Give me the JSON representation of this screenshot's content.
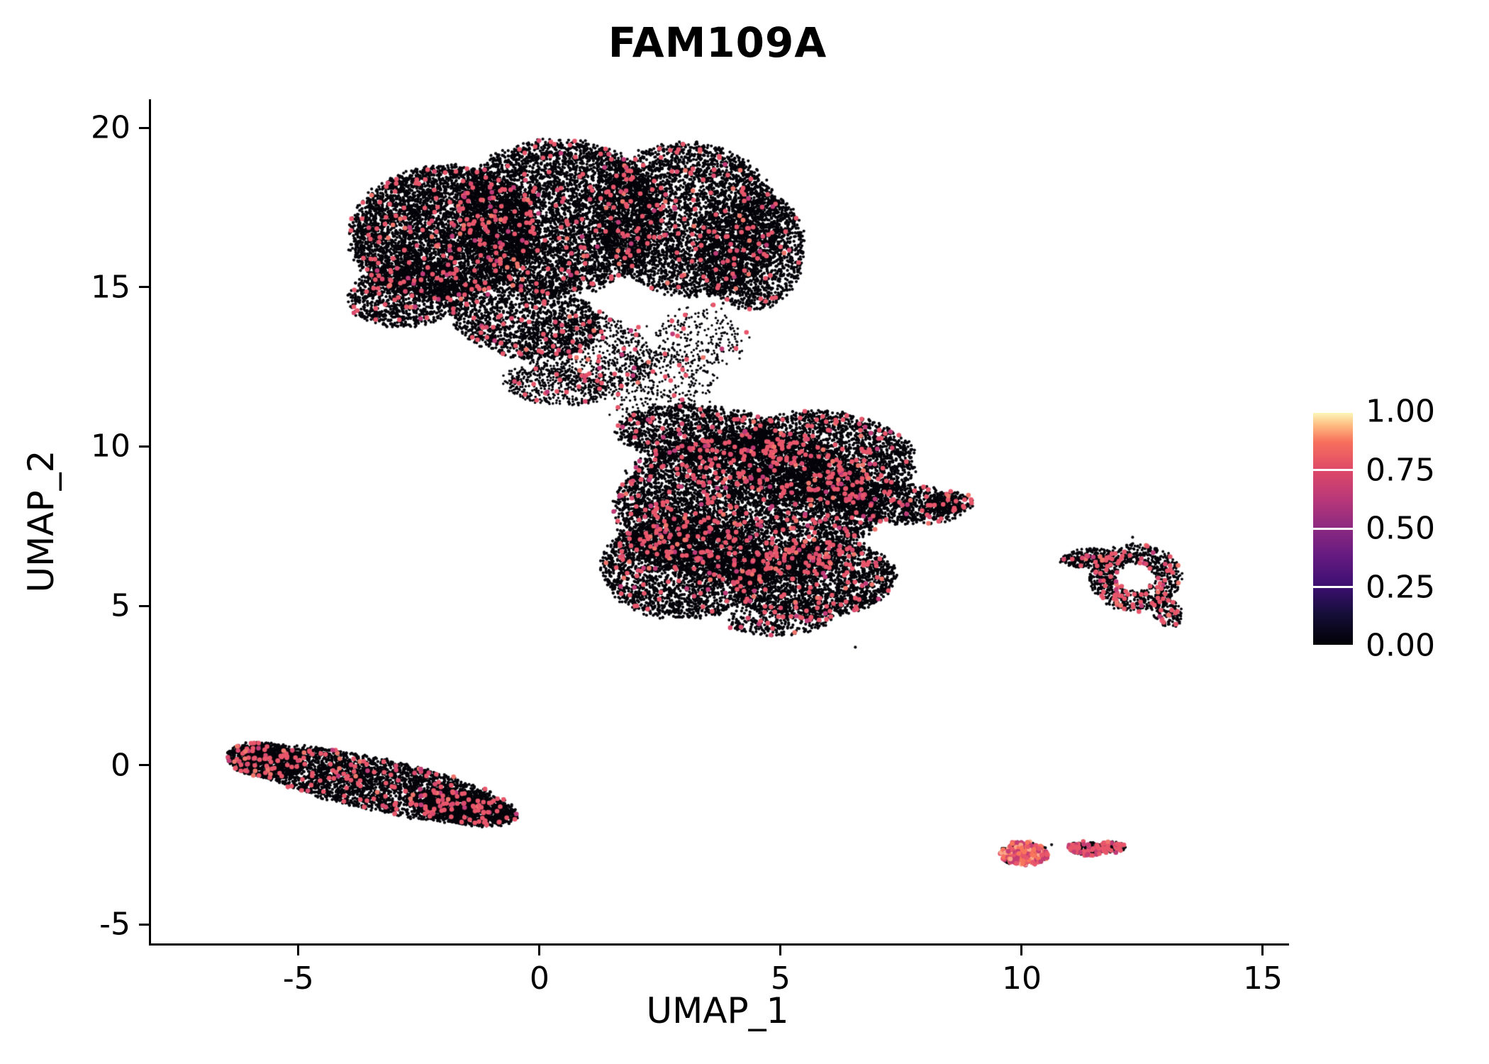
{
  "chart_data": {
    "type": "scatter",
    "title": "FAM109A",
    "xlabel": "UMAP_1",
    "ylabel": "UMAP_2",
    "xlim": [
      -8.1,
      15.5
    ],
    "ylim": [
      -5.6,
      20.9
    ],
    "grid": false,
    "seed": 42,
    "x_ticks": [
      {
        "value": -5,
        "label": "-5"
      },
      {
        "value": 0,
        "label": "0"
      },
      {
        "value": 5,
        "label": "5"
      },
      {
        "value": 10,
        "label": "10"
      },
      {
        "value": 15,
        "label": "15"
      }
    ],
    "y_ticks": [
      {
        "value": 20,
        "label": "20"
      },
      {
        "value": 15,
        "label": "15"
      },
      {
        "value": 10,
        "label": "10"
      },
      {
        "value": 5,
        "label": "5"
      },
      {
        "value": 0,
        "label": "0"
      },
      {
        "value": -5,
        "label": "-5"
      }
    ],
    "colorbar": {
      "colormap": "magma",
      "position": "right",
      "ticks": [
        {
          "value": 1.0,
          "label": "1.00"
        },
        {
          "value": 0.75,
          "label": "0.75"
        },
        {
          "value": 0.5,
          "label": "0.50"
        },
        {
          "value": 0.25,
          "label": "0.25"
        },
        {
          "value": 0.0,
          "label": "0.00"
        }
      ],
      "stops": [
        {
          "t": 0.0,
          "c": "#000004"
        },
        {
          "t": 0.13,
          "c": "#140e36"
        },
        {
          "t": 0.25,
          "c": "#3b0f70"
        },
        {
          "t": 0.38,
          "c": "#641a80"
        },
        {
          "t": 0.5,
          "c": "#8c2981"
        },
        {
          "t": 0.62,
          "c": "#b73779"
        },
        {
          "t": 0.75,
          "c": "#de4968"
        },
        {
          "t": 0.87,
          "c": "#f7705c"
        },
        {
          "t": 0.94,
          "c": "#feba80"
        },
        {
          "t": 1.0,
          "c": "#fcfdbf"
        }
      ]
    },
    "point_style": {
      "base_color": "#05040a",
      "base_radius": 2.1,
      "expr_radius": 3.3,
      "expressing_palette": [
        {
          "c": "#e8566b",
          "w": 0.7
        },
        {
          "c": "#d94a6e",
          "w": 0.12
        },
        {
          "c": "#c13a78",
          "w": 0.08
        },
        {
          "c": "#f0766c",
          "w": 0.1
        }
      ]
    },
    "clusters": [
      {
        "cx": -2.0,
        "cy": 16.7,
        "rx": 1.9,
        "ry": 2.1,
        "rot": -15,
        "n": 5200,
        "expr_frac": 0.03
      },
      {
        "cx": 0.4,
        "cy": 17.2,
        "rx": 2.1,
        "ry": 2.4,
        "rot": 0,
        "n": 5200,
        "expr_frac": 0.03
      },
      {
        "cx": 3.1,
        "cy": 17.1,
        "rx": 1.9,
        "ry": 2.4,
        "rot": 8,
        "n": 4200,
        "expr_frac": 0.03
      },
      {
        "cx": 4.4,
        "cy": 16.2,
        "rx": 1.1,
        "ry": 1.9,
        "rot": 0,
        "n": 1600,
        "expr_frac": 0.025
      },
      {
        "cx": -2.7,
        "cy": 14.8,
        "rx": 1.3,
        "ry": 1.0,
        "rot": 20,
        "n": 1100,
        "expr_frac": 0.03
      },
      {
        "cx": -0.3,
        "cy": 14.0,
        "rx": 1.6,
        "ry": 1.2,
        "rot": -20,
        "n": 1500,
        "expr_frac": 0.03
      },
      {
        "cx": 1.0,
        "cy": 13.0,
        "rx": 1.5,
        "ry": 1.1,
        "rot": -30,
        "n": 800,
        "pr": 1.8,
        "fuzz": 0.15,
        "expr_frac": 0.035
      },
      {
        "cx": 0.3,
        "cy": 11.9,
        "rx": 1.1,
        "ry": 0.6,
        "rot": -10,
        "n": 450,
        "pr": 1.8,
        "expr_frac": 0.045
      },
      {
        "cx": 2.3,
        "cy": 12.0,
        "rx": 1.3,
        "ry": 1.0,
        "rot": 0,
        "n": 420,
        "pr": 1.7,
        "fuzz": 0.2,
        "expr_frac": 0.03
      },
      {
        "cx": 3.3,
        "cy": 13.4,
        "rx": 0.9,
        "ry": 0.9,
        "rot": 0,
        "n": 240,
        "pr": 1.7,
        "fuzz": 0.25,
        "expr_frac": 0.03
      },
      {
        "cx": 4.3,
        "cy": 8.1,
        "rx": 2.7,
        "ry": 2.4,
        "rot": 0,
        "n": 7500,
        "expr_frac": 0.045
      },
      {
        "cx": 5.9,
        "cy": 9.6,
        "rx": 1.9,
        "ry": 1.5,
        "rot": -10,
        "n": 2600,
        "expr_frac": 0.045
      },
      {
        "cx": 3.0,
        "cy": 6.2,
        "rx": 1.7,
        "ry": 1.6,
        "rot": 0,
        "n": 2600,
        "expr_frac": 0.04
      },
      {
        "cx": 5.7,
        "cy": 5.8,
        "rx": 1.7,
        "ry": 1.2,
        "rot": 10,
        "n": 2200,
        "expr_frac": 0.045
      },
      {
        "cx": 5.0,
        "cy": 4.6,
        "rx": 1.1,
        "ry": 0.55,
        "rot": 5,
        "n": 350,
        "expr_frac": 0.04
      },
      {
        "cx": 3.3,
        "cy": 10.4,
        "rx": 1.7,
        "ry": 0.9,
        "rot": -5,
        "n": 1400,
        "expr_frac": 0.04
      },
      {
        "cx": 7.5,
        "cy": 8.2,
        "rx": 1.3,
        "ry": 0.65,
        "rot": -8,
        "n": 900,
        "expr_frac": 0.05
      },
      {
        "cx": 8.5,
        "cy": 8.25,
        "rx": 0.5,
        "ry": 0.35,
        "rot": 0,
        "n": 200,
        "expr_frac": 0.06
      },
      {
        "cx": -3.4,
        "cy": -0.6,
        "rx": 3.0,
        "ry": 0.8,
        "rot": -19,
        "n": 3200,
        "expr_frac": 0.04
      },
      {
        "cx": -5.7,
        "cy": 0.15,
        "rx": 0.8,
        "ry": 0.55,
        "rot": -15,
        "n": 900,
        "expr_frac": 0.05
      },
      {
        "cx": -1.6,
        "cy": -1.35,
        "rx": 1.2,
        "ry": 0.5,
        "rot": -15,
        "n": 900,
        "expr_frac": 0.045
      },
      {
        "cx": 12.35,
        "cy": 5.9,
        "rx": 0.95,
        "ry": 1.05,
        "rot": 0,
        "n": 950,
        "inner": 0.42,
        "pr": 1.9,
        "expr_frac": 0.07
      },
      {
        "cx": 11.35,
        "cy": 6.5,
        "rx": 0.55,
        "ry": 0.3,
        "rot": 10,
        "n": 260,
        "pr": 1.9,
        "expr_frac": 0.05
      },
      {
        "cx": 13.0,
        "cy": 4.85,
        "rx": 0.3,
        "ry": 0.55,
        "rot": 15,
        "n": 160,
        "pr": 1.9,
        "expr_frac": 0.12
      },
      {
        "cx": 10.05,
        "cy": -2.78,
        "rx": 0.5,
        "ry": 0.38,
        "rot": 0,
        "n": 420,
        "expr_frac": 0.45,
        "expr_palette": [
          {
            "c": "#f8765c",
            "w": 0.3
          },
          {
            "c": "#e8566b",
            "w": 0.35
          },
          {
            "c": "#fca98a",
            "w": 0.1
          },
          {
            "c": "#c63e73",
            "w": 0.25
          }
        ]
      },
      {
        "cx": 11.35,
        "cy": -2.62,
        "rx": 0.38,
        "ry": 0.22,
        "rot": -10,
        "n": 170,
        "expr_frac": 0.32,
        "expr_palette": [
          {
            "c": "#e8566b",
            "w": 0.6
          },
          {
            "c": "#c63e73",
            "w": 0.4
          }
        ]
      },
      {
        "cx": 11.85,
        "cy": -2.58,
        "rx": 0.3,
        "ry": 0.18,
        "rot": 0,
        "n": 130,
        "expr_frac": 0.2
      }
    ],
    "strays": [
      {
        "x": 6.55,
        "y": 3.7
      },
      {
        "x": 10.62,
        "y": -2.5
      },
      {
        "x": 9.6,
        "y": -2.62
      },
      {
        "x": 12.3,
        "y": 7.15
      }
    ]
  }
}
